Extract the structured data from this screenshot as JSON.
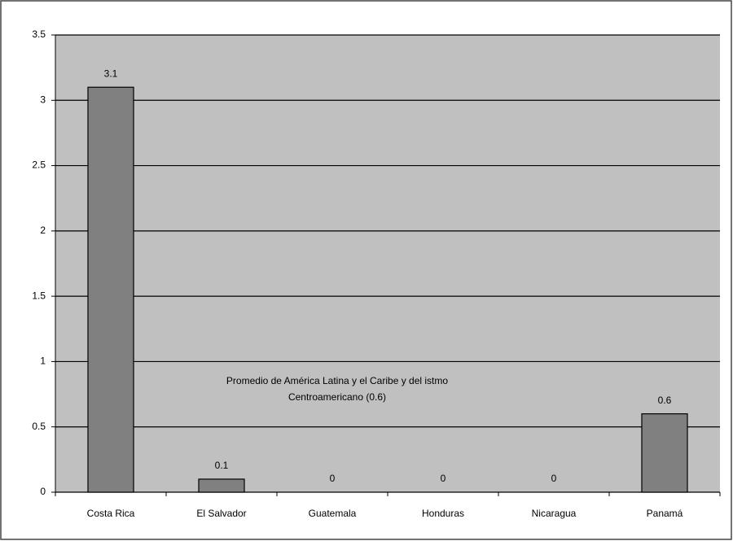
{
  "chart_data": {
    "type": "bar",
    "categories": [
      "Costa Rica",
      "El Salvador",
      "Guatemala",
      "Honduras",
      "Nicaragua",
      "Panamá"
    ],
    "values": [
      3.1,
      0.1,
      0,
      0,
      0,
      0.6
    ],
    "color": "#808080",
    "ylim": [
      0,
      3.5
    ],
    "yticks": [
      0,
      0.5,
      1,
      1.5,
      2,
      2.5,
      3,
      3.5
    ],
    "grid": true,
    "annotation": [
      "Promedio de América Latina y el Caribe y del istmo",
      "Centroamericano (0.6)"
    ]
  }
}
